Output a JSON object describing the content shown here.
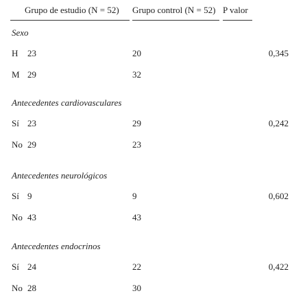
{
  "header": [
    "Grupo de estudio (N = 52)",
    "Grupo control (N = 52)",
    "P valor"
  ],
  "sections": [
    {
      "title": "Sexo",
      "rows": [
        [
          "H",
          23,
          20,
          "0,345"
        ],
        [
          "M",
          29,
          32
        ]
      ]
    },
    {
      "title": "Antecedentes cardiovasculares",
      "rows": [
        [
          "Sí",
          23,
          29,
          "0,242"
        ],
        [
          "No",
          29,
          23
        ]
      ]
    },
    {
      "title": "Antecedentes neurológicos",
      "rows": [
        [
          "Sí",
          9,
          9,
          "0,602"
        ],
        [
          "No",
          43,
          43
        ]
      ]
    },
    {
      "title": "Antecedentes endocrinos",
      "rows": [
        [
          "Sí",
          24,
          22,
          "0,422"
        ],
        [
          "No",
          28,
          30
        ]
      ]
    }
  ]
}
